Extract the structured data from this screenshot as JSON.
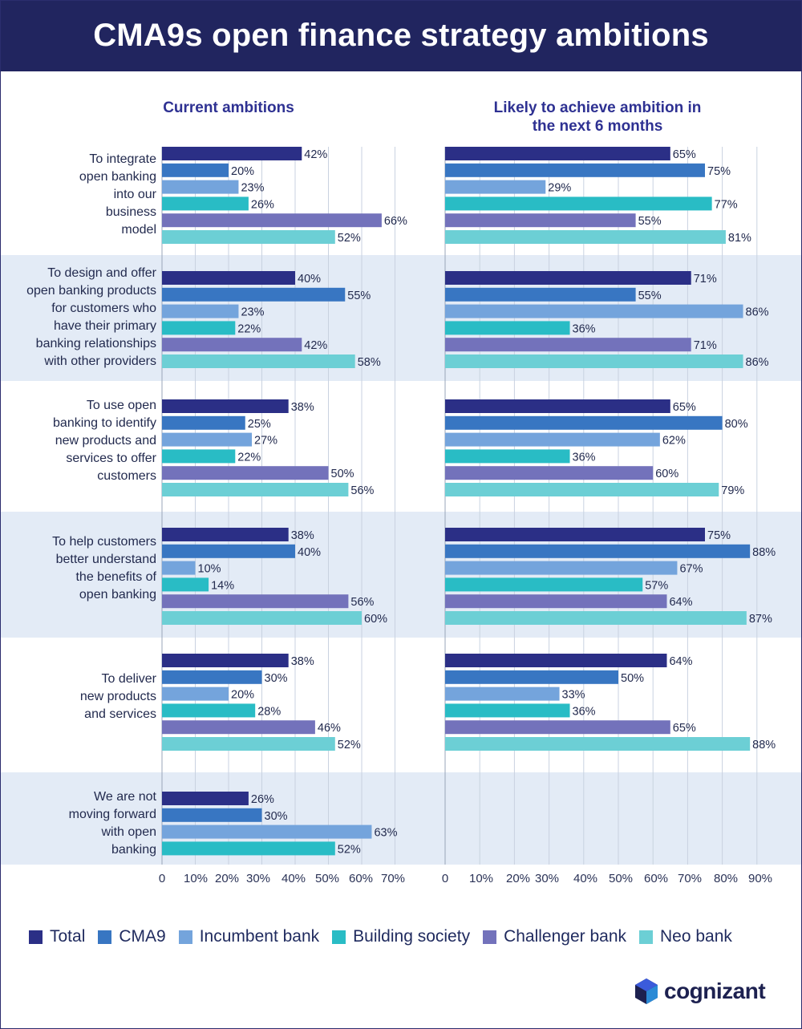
{
  "header": {
    "title": "CMA9s open finance strategy ambitions"
  },
  "panels": [
    {
      "title_line1": "Current ambitions",
      "title_line2": ""
    },
    {
      "title_line1": "Likely to achieve ambition in",
      "title_line2": "the next 6 months"
    }
  ],
  "colors": {
    "Total": "#2b2f86",
    "CMA9": "#3876c2",
    "Incumbent bank": "#74a4dc",
    "Building society": "#29bcc5",
    "Challenger bank": "#7372bb",
    "Neo bank": "#6ccfd5",
    "band": "#e3ebf6"
  },
  "legend": [
    {
      "label": "Total",
      "color": "#2b2f86"
    },
    {
      "label": "CMA9",
      "color": "#3876c2"
    },
    {
      "label": "Incumbent bank",
      "color": "#74a4dc"
    },
    {
      "label": "Building society",
      "color": "#29bcc5"
    },
    {
      "label": "Challenger bank",
      "color": "#7372bb"
    },
    {
      "label": "Neo bank",
      "color": "#6ccfd5"
    }
  ],
  "logo": {
    "text": "cognizant"
  },
  "chart_data": [
    {
      "type": "bar",
      "orientation": "horizontal",
      "title": "Current ambitions",
      "xlim": [
        0,
        70
      ],
      "xticks": [
        "0",
        "10%",
        "20%",
        "30%",
        "40%",
        "50%",
        "60%",
        "70%"
      ],
      "categories": [
        "To integrate open banking into our business model",
        "To design and offer open banking products for customers who have their primary banking relationships with other providers",
        "To use open banking to identify new products and services to offer customers",
        "To help customers better understand the benefits of open banking",
        "To deliver new products and services",
        "We are not moving forward with open banking"
      ],
      "series": [
        {
          "name": "Total",
          "values": [
            42,
            40,
            38,
            38,
            38,
            26
          ]
        },
        {
          "name": "CMA9",
          "values": [
            20,
            55,
            25,
            40,
            30,
            30
          ]
        },
        {
          "name": "Incumbent bank",
          "values": [
            23,
            23,
            27,
            10,
            20,
            63
          ]
        },
        {
          "name": "Building society",
          "values": [
            26,
            22,
            22,
            14,
            28,
            52
          ]
        },
        {
          "name": "Challenger bank",
          "values": [
            66,
            42,
            50,
            56,
            46,
            null
          ]
        },
        {
          "name": "Neo bank",
          "values": [
            52,
            58,
            56,
            60,
            52,
            null
          ]
        }
      ]
    },
    {
      "type": "bar",
      "orientation": "horizontal",
      "title": "Likely to achieve ambition in the next 6 months",
      "xlim": [
        0,
        90
      ],
      "xticks": [
        "0",
        "10%",
        "20%",
        "30%",
        "40%",
        "50%",
        "60%",
        "70%",
        "80%",
        "90%"
      ],
      "categories": [
        "To integrate open banking into our business model",
        "To design and offer open banking products for customers who have their primary banking relationships with other providers",
        "To use open banking to identify new products and services to offer customers",
        "To help customers better understand the benefits of open banking",
        "To deliver new products and services"
      ],
      "series": [
        {
          "name": "Total",
          "values": [
            65,
            71,
            65,
            75,
            64
          ]
        },
        {
          "name": "CMA9",
          "values": [
            75,
            55,
            80,
            88,
            50
          ]
        },
        {
          "name": "Incumbent bank",
          "values": [
            29,
            86,
            62,
            67,
            33
          ]
        },
        {
          "name": "Building society",
          "values": [
            77,
            36,
            36,
            57,
            36
          ]
        },
        {
          "name": "Challenger bank",
          "values": [
            55,
            71,
            60,
            64,
            65
          ]
        },
        {
          "name": "Neo bank",
          "values": [
            81,
            86,
            79,
            87,
            88
          ]
        }
      ]
    }
  ],
  "question_labels": [
    [
      "To integrate",
      "open banking",
      "into our",
      "business",
      "model"
    ],
    [
      "To design and offer",
      "open banking products",
      "for customers who",
      "have their primary",
      "banking relationships",
      "with other providers"
    ],
    [
      "To use open",
      "banking to identify",
      "new products and",
      "services to offer",
      "customers"
    ],
    [
      "To help customers",
      "better understand",
      "the benefits of",
      "open banking"
    ],
    [
      "To deliver",
      "new products",
      "and services"
    ],
    [
      "We are not",
      "moving forward",
      "with open",
      "banking"
    ]
  ]
}
